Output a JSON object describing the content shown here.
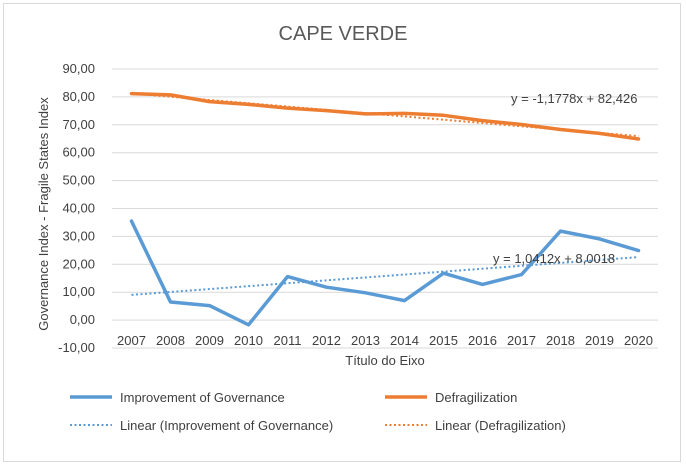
{
  "chart_data": {
    "type": "line",
    "title": "CAPE VERDE",
    "xlabel": "Título do Eixo",
    "ylabel": "Governance Index  -  Fragile States Index",
    "x": [
      "2007",
      "2008",
      "2009",
      "2010",
      "2011",
      "2012",
      "2013",
      "2014",
      "2015",
      "2016",
      "2017",
      "2018",
      "2019",
      "2020"
    ],
    "ylim": [
      -10,
      90
    ],
    "y_ticks": [
      "-10,00",
      "0,00",
      "10,00",
      "20,00",
      "30,00",
      "40,00",
      "50,00",
      "60,00",
      "70,00",
      "80,00",
      "90,00"
    ],
    "grid": true,
    "legend_position": "bottom",
    "series": [
      {
        "name": "Improvement of Governance",
        "color": "#5b9bd5",
        "style": "solid",
        "values": [
          35.5,
          6.5,
          5.2,
          -1.7,
          15.6,
          11.8,
          9.8,
          7.0,
          16.8,
          12.8,
          16.3,
          31.9,
          29.1,
          24.9
        ]
      },
      {
        "name": "Defragilization",
        "color": "#ed7d31",
        "style": "solid",
        "values": [
          81.2,
          80.7,
          78.3,
          77.3,
          76.0,
          75.1,
          73.9,
          74.1,
          73.4,
          71.5,
          70.1,
          68.3,
          66.9,
          64.9
        ]
      }
    ],
    "trendlines": [
      {
        "name": "Linear (Improvement of Governance)",
        "color": "#5b9bd5",
        "style": "dotted",
        "slope": 1.0412,
        "intercept": 8.0018,
        "equation": "y = 1,0412x + 8,0018"
      },
      {
        "name": "Linear (Defragilization)",
        "color": "#ed7d31",
        "style": "dotted",
        "slope": -1.1778,
        "intercept": 82.426,
        "equation": "y = -1,1778x + 82,426"
      }
    ]
  }
}
